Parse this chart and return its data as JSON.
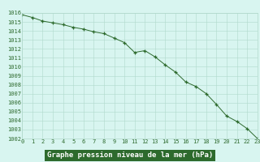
{
  "x": [
    0,
    1,
    2,
    3,
    4,
    5,
    6,
    7,
    8,
    9,
    10,
    11,
    12,
    13,
    14,
    15,
    16,
    17,
    18,
    19,
    20,
    21,
    22,
    23
  ],
  "y": [
    1015.8,
    1015.5,
    1015.1,
    1014.9,
    1014.7,
    1014.4,
    1014.2,
    1013.9,
    1013.7,
    1013.2,
    1012.7,
    1011.6,
    1011.8,
    1011.1,
    1010.2,
    1009.4,
    1008.3,
    1007.8,
    1007.0,
    1005.8,
    1004.5,
    1003.9,
    1003.1,
    1002.0
  ],
  "ylim": [
    1002,
    1016
  ],
  "xlim": [
    0,
    23
  ],
  "yticks": [
    1002,
    1003,
    1004,
    1005,
    1006,
    1007,
    1008,
    1009,
    1010,
    1011,
    1012,
    1013,
    1014,
    1015,
    1016
  ],
  "xticks": [
    0,
    1,
    2,
    3,
    4,
    5,
    6,
    7,
    8,
    9,
    10,
    11,
    12,
    13,
    14,
    15,
    16,
    17,
    18,
    19,
    20,
    21,
    22,
    23
  ],
  "xlabel": "Graphe pression niveau de la mer (hPa)",
  "line_color": "#2d6a2d",
  "marker_color": "#2d6a2d",
  "bg_color": "#d8f5f0",
  "grid_color": "#b0d9cc",
  "tick_label_color": "#2d6a2d",
  "xlabel_bg": "#2d6a2d",
  "xlabel_text_color": "#ffffff"
}
